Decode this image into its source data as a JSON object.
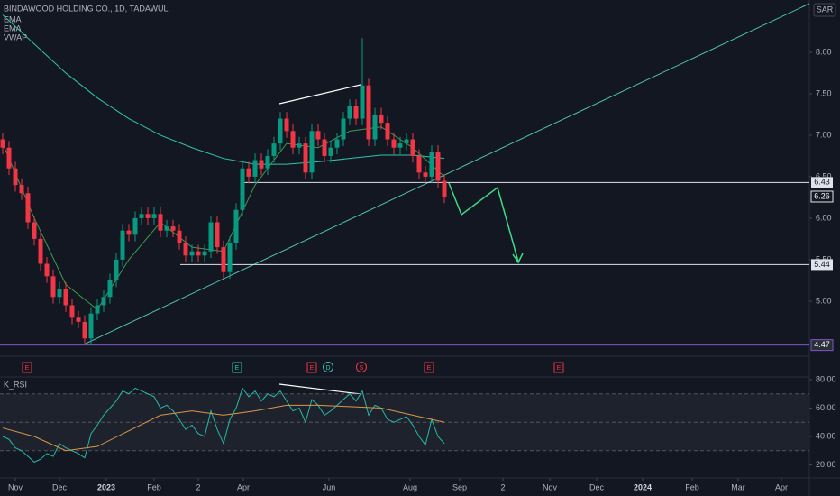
{
  "chart_data": {
    "type": "candlestick",
    "title": "BINDAWOOD HOLDING CO., 1D, TADAWUL",
    "currency": "SAR",
    "legend": [
      "EMA",
      "EMA",
      "VWAP"
    ],
    "up_color": "#089981",
    "down_color": "#f23645",
    "x": [
      0,
      1,
      2,
      3,
      4,
      5,
      6,
      7,
      8,
      9,
      10,
      11,
      12,
      13,
      14,
      15,
      16,
      17,
      18,
      19,
      20,
      21,
      22,
      23,
      24,
      25,
      26,
      27,
      28,
      29,
      30,
      31,
      32,
      33,
      34,
      35,
      36,
      37,
      38,
      39,
      40,
      41,
      42,
      43,
      44,
      45,
      46,
      47,
      48,
      49,
      50,
      51,
      52,
      53,
      54,
      55,
      56,
      57,
      58,
      59,
      60,
      61,
      62,
      63,
      64,
      65,
      66,
      67,
      68,
      69,
      70
    ],
    "open": [
      6.95,
      6.85,
      6.6,
      6.4,
      6.3,
      5.95,
      5.75,
      5.45,
      5.3,
      5.05,
      5.15,
      4.95,
      4.8,
      4.75,
      4.55,
      4.85,
      4.95,
      5.05,
      5.25,
      5.5,
      5.85,
      5.8,
      6.0,
      6.05,
      6.0,
      6.05,
      5.85,
      5.9,
      5.85,
      5.7,
      5.55,
      5.6,
      5.55,
      5.6,
      5.95,
      5.65,
      5.35,
      5.7,
      6.1,
      6.6,
      6.5,
      6.7,
      6.6,
      6.75,
      6.9,
      7.2,
      7.05,
      6.85,
      6.9,
      6.55,
      7.05,
      6.95,
      6.75,
      6.85,
      6.95,
      7.2,
      7.35,
      7.2,
      7.6,
      6.95,
      7.25,
      7.15,
      6.95,
      6.85,
      6.9,
      6.95,
      6.75,
      6.55,
      6.5,
      6.8,
      6.45
    ],
    "high": [
      7.03,
      6.93,
      6.68,
      6.48,
      6.38,
      6.03,
      5.83,
      5.53,
      5.38,
      5.23,
      5.23,
      5.03,
      4.88,
      4.83,
      4.93,
      5.03,
      5.13,
      5.33,
      5.58,
      5.93,
      5.93,
      6.08,
      6.13,
      6.13,
      6.13,
      6.13,
      5.98,
      5.98,
      5.93,
      5.78,
      5.68,
      5.68,
      5.68,
      6.03,
      6.03,
      5.73,
      5.78,
      6.18,
      6.68,
      6.68,
      6.78,
      6.78,
      6.83,
      6.98,
      7.28,
      7.28,
      7.13,
      6.98,
      6.98,
      7.13,
      7.13,
      7.03,
      6.93,
      7.03,
      7.28,
      7.43,
      7.43,
      8.17,
      7.68,
      7.33,
      7.33,
      7.23,
      7.03,
      6.98,
      7.03,
      7.03,
      6.83,
      6.63,
      6.88,
      6.88,
      6.53
    ],
    "low": [
      6.77,
      6.52,
      6.32,
      6.22,
      5.87,
      5.67,
      5.37,
      5.22,
      4.97,
      4.97,
      4.87,
      4.72,
      4.67,
      4.47,
      4.47,
      4.77,
      4.87,
      4.97,
      5.17,
      5.42,
      5.72,
      5.72,
      5.92,
      5.92,
      5.92,
      5.77,
      5.77,
      5.77,
      5.62,
      5.47,
      5.47,
      5.47,
      5.47,
      5.52,
      5.57,
      5.27,
      5.27,
      5.62,
      6.02,
      6.42,
      6.42,
      6.52,
      6.52,
      6.67,
      6.82,
      6.97,
      6.77,
      6.77,
      6.47,
      6.47,
      6.87,
      6.67,
      6.67,
      6.77,
      6.87,
      7.12,
      7.12,
      7.12,
      6.87,
      6.87,
      7.07,
      6.87,
      6.77,
      6.77,
      6.82,
      6.67,
      6.47,
      6.42,
      6.42,
      6.37,
      6.18
    ],
    "close": [
      6.85,
      6.6,
      6.4,
      6.3,
      5.95,
      5.75,
      5.45,
      5.3,
      5.05,
      5.15,
      4.95,
      4.8,
      4.75,
      4.55,
      4.85,
      4.95,
      5.05,
      5.25,
      5.5,
      5.85,
      5.8,
      6.0,
      6.05,
      6.0,
      6.05,
      5.85,
      5.9,
      5.85,
      5.7,
      5.55,
      5.6,
      5.55,
      5.6,
      5.95,
      5.65,
      5.35,
      5.7,
      6.1,
      6.6,
      6.5,
      6.7,
      6.6,
      6.75,
      6.9,
      7.2,
      7.05,
      6.85,
      6.9,
      6.55,
      7.05,
      6.95,
      6.75,
      6.85,
      6.95,
      7.2,
      7.35,
      7.2,
      7.6,
      6.95,
      7.25,
      7.15,
      6.95,
      6.85,
      6.9,
      6.95,
      6.75,
      6.55,
      6.5,
      6.8,
      6.45,
      6.26
    ],
    "lines": [
      {
        "color": "#2ec4b0",
        "x": [
          0,
          5,
          10,
          15,
          20,
          25,
          30,
          35,
          40,
          45,
          50,
          55,
          60,
          65,
          70
        ],
        "values": [
          8.45,
          8.1,
          7.75,
          7.45,
          7.2,
          7.0,
          6.85,
          6.72,
          6.65,
          6.65,
          6.68,
          6.72,
          6.76,
          6.76,
          6.72
        ]
      },
      {
        "color": "#3f9a4e",
        "x": [
          0,
          5,
          10,
          15,
          20,
          25,
          30,
          35,
          40,
          45,
          50,
          55,
          60,
          65,
          70
        ],
        "values": [
          6.9,
          6.0,
          5.2,
          4.9,
          5.5,
          5.95,
          5.65,
          5.6,
          6.4,
          6.9,
          6.85,
          7.05,
          7.1,
          6.85,
          6.5
        ]
      }
    ],
    "xlim": [
      -0.43,
      127.86
    ],
    "xticks": [
      {
        "value": 2,
        "label": "Nov"
      },
      {
        "value": 9,
        "label": "Dec"
      },
      {
        "value": 16.43,
        "label": "2023"
      },
      {
        "value": 24,
        "label": "Feb"
      },
      {
        "value": 31,
        "label": "2"
      },
      {
        "value": 38.14,
        "label": "Apr"
      },
      {
        "value": 51.71,
        "label": "Jun"
      },
      {
        "value": 64.57,
        "label": "Aug"
      },
      {
        "value": 72.43,
        "label": "Sep"
      },
      {
        "value": 79.29,
        "label": "2"
      },
      {
        "value": 86.71,
        "label": "Nov"
      },
      {
        "value": 94.14,
        "label": "Dec"
      },
      {
        "value": 101.43,
        "label": "2024"
      },
      {
        "value": 109.29,
        "label": "Feb"
      },
      {
        "value": 116.57,
        "label": "Mar"
      },
      {
        "value": 123.43,
        "label": "Apr"
      }
    ],
    "ylim": [
      4.39,
      8.63
    ],
    "yticks": [
      {
        "value": 5,
        "label": "5.00"
      },
      {
        "value": 5.5,
        "label": "5.50"
      },
      {
        "value": 6,
        "label": "6.00"
      },
      {
        "value": 6.5,
        "label": "6.50"
      },
      {
        "value": 7,
        "label": "7.00"
      },
      {
        "value": 7.5,
        "label": "7.50"
      },
      {
        "value": 8,
        "label": "8.00"
      }
    ],
    "levels": [
      6.43,
      5.44
    ],
    "last_price": 6.26,
    "low_line": 4.47,
    "events": [
      "E",
      "E",
      "E",
      "D",
      "S",
      "E",
      "E"
    ],
    "rsi": {
      "title": "K_RSI",
      "color": "#26b9a8",
      "values": [
        40,
        38,
        32,
        30,
        26,
        22,
        24,
        28,
        26,
        35,
        32,
        30,
        28,
        25,
        42,
        48,
        55,
        60,
        65,
        72,
        70,
        74,
        72,
        70,
        68,
        60,
        62,
        58,
        52,
        45,
        48,
        42,
        40,
        58,
        45,
        35,
        52,
        60,
        74,
        68,
        72,
        65,
        70,
        68,
        72,
        65,
        58,
        60,
        50,
        66,
        62,
        55,
        58,
        62,
        66,
        70,
        65,
        72,
        55,
        62,
        60,
        52,
        50,
        52,
        54,
        48,
        40,
        34,
        52,
        40,
        35
      ],
      "ma": {
        "color": "#d9964a",
        "x": [
          0,
          5,
          10,
          15,
          20,
          25,
          30,
          35,
          40,
          45,
          50,
          55,
          60,
          65,
          70
        ],
        "values": [
          46,
          40,
          30,
          33,
          44,
          55,
          58,
          55,
          58,
          62,
          62,
          61,
          60,
          55,
          50
        ]
      },
      "ylim": [
        10.8,
        83.8
      ],
      "yticks": [
        {
          "value": 20,
          "label": "20.00"
        },
        {
          "value": 40,
          "label": "40.00"
        },
        {
          "value": 60,
          "label": "60.00"
        },
        {
          "value": 80,
          "label": "80.00"
        }
      ],
      "bands": [
        70,
        50,
        30
      ]
    }
  }
}
